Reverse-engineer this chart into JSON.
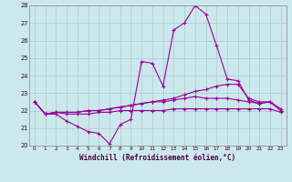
{
  "xlabel": "Windchill (Refroidissement éolien,°C)",
  "background_color": "#cce8ec",
  "grid_color": "#aacccc",
  "line_color": "#990099",
  "hours": [
    0,
    1,
    2,
    3,
    4,
    5,
    6,
    7,
    8,
    9,
    10,
    11,
    12,
    13,
    14,
    15,
    16,
    17,
    18,
    19,
    20,
    21,
    22,
    23
  ],
  "series1": [
    22.5,
    21.8,
    21.8,
    21.4,
    21.1,
    20.8,
    20.7,
    20.1,
    21.2,
    21.5,
    24.8,
    24.7,
    23.4,
    26.6,
    27.0,
    28.0,
    27.5,
    25.7,
    23.8,
    23.7,
    22.6,
    22.4,
    22.5,
    22.0
  ],
  "series2": [
    22.5,
    21.8,
    21.9,
    21.9,
    21.9,
    22.0,
    22.0,
    22.1,
    22.2,
    22.3,
    22.4,
    22.5,
    22.6,
    22.7,
    22.9,
    23.1,
    23.2,
    23.4,
    23.5,
    23.5,
    22.7,
    22.5,
    22.5,
    22.1
  ],
  "series3": [
    22.5,
    21.8,
    21.9,
    21.9,
    21.9,
    22.0,
    22.0,
    22.1,
    22.2,
    22.3,
    22.4,
    22.5,
    22.5,
    22.6,
    22.7,
    22.8,
    22.7,
    22.7,
    22.7,
    22.6,
    22.5,
    22.4,
    22.5,
    22.0
  ],
  "series4": [
    22.5,
    21.8,
    21.9,
    21.8,
    21.8,
    21.8,
    21.9,
    21.9,
    22.0,
    22.0,
    22.0,
    22.0,
    22.0,
    22.1,
    22.1,
    22.1,
    22.1,
    22.1,
    22.1,
    22.1,
    22.1,
    22.1,
    22.1,
    21.9
  ],
  "ylim": [
    20,
    28
  ],
  "yticks": [
    20,
    21,
    22,
    23,
    24,
    25,
    26,
    27,
    28
  ]
}
